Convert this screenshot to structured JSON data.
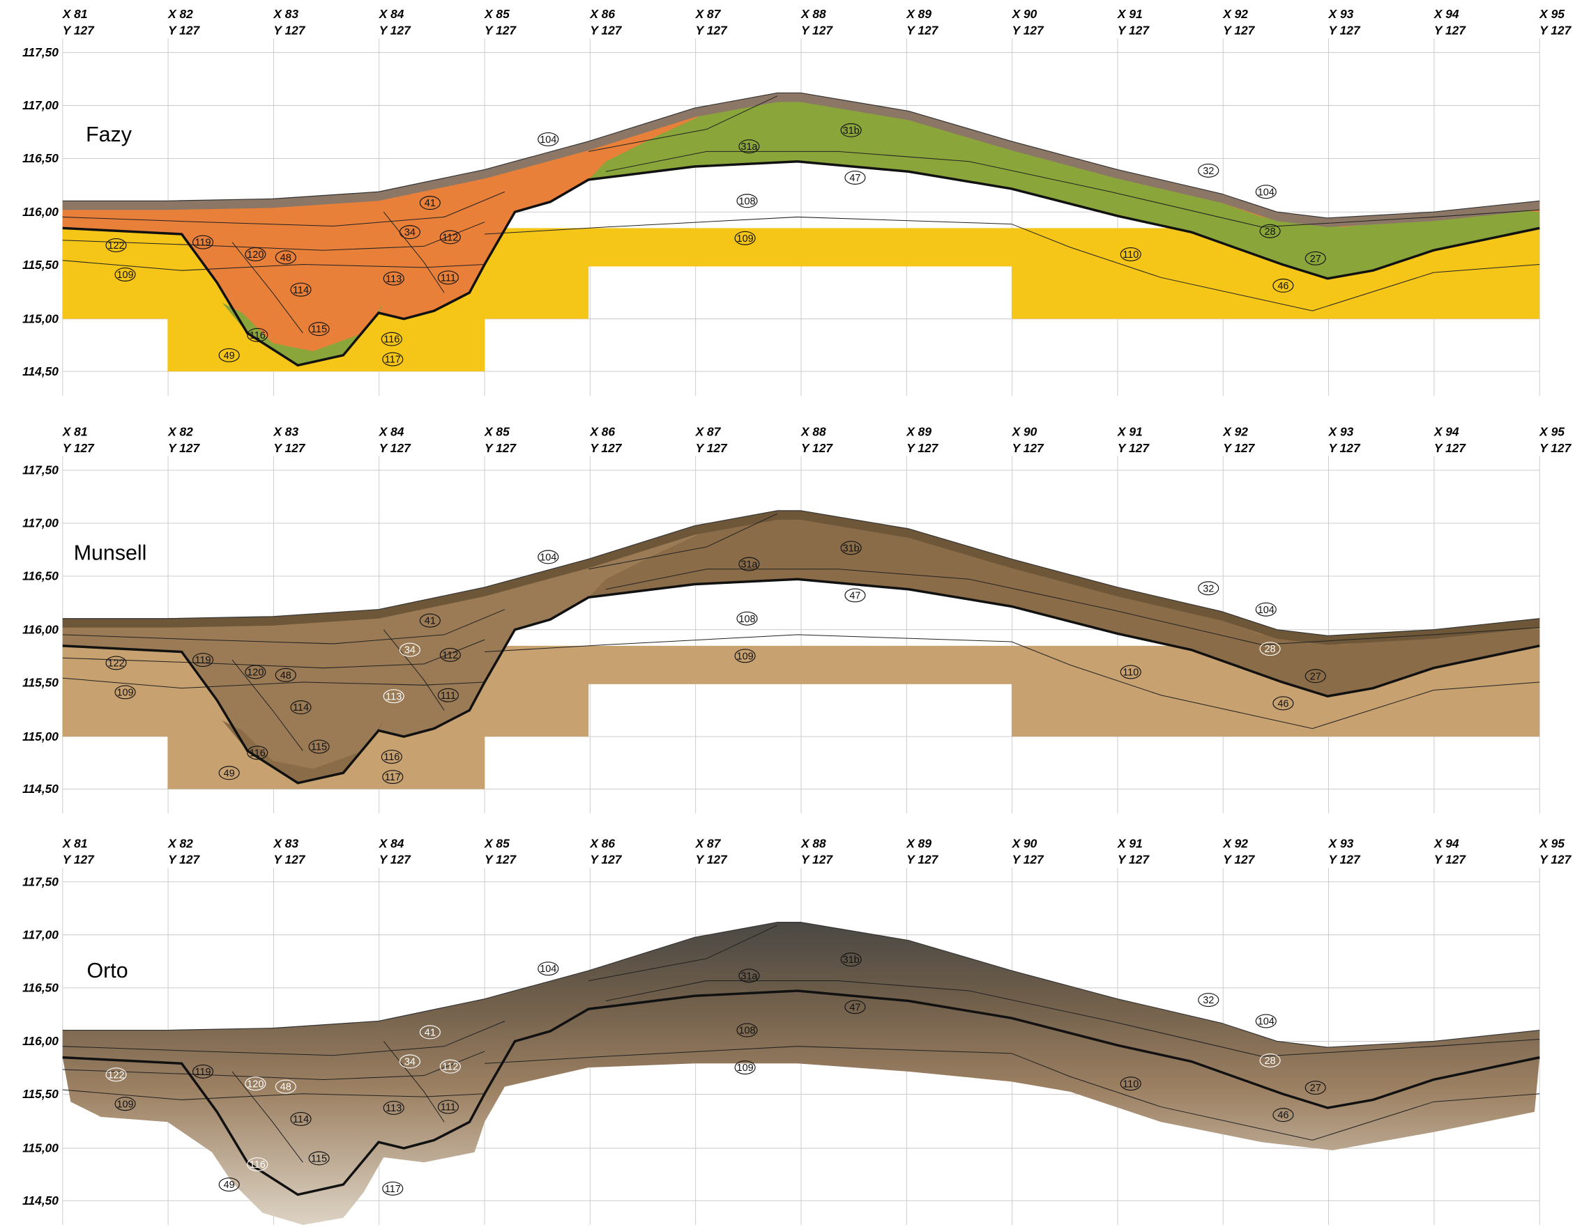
{
  "columns": [
    {
      "x": "X 81",
      "y": "Y 127"
    },
    {
      "x": "X 82",
      "y": "Y 127"
    },
    {
      "x": "X 83",
      "y": "Y 127"
    },
    {
      "x": "X 84",
      "y": "Y 127"
    },
    {
      "x": "X 85",
      "y": "Y 127"
    },
    {
      "x": "X 86",
      "y": "Y 127"
    },
    {
      "x": "X 87",
      "y": "Y 127"
    },
    {
      "x": "X 88",
      "y": "Y 127"
    },
    {
      "x": "X 89",
      "y": "Y 127"
    },
    {
      "x": "X 90",
      "y": "Y 127"
    },
    {
      "x": "X 91",
      "y": "Y 127"
    },
    {
      "x": "X 92",
      "y": "Y 127"
    },
    {
      "x": "X 93",
      "y": "Y 127"
    },
    {
      "x": "X 94",
      "y": "Y 127"
    },
    {
      "x": "X 95",
      "y": "Y 127"
    }
  ],
  "levels": [
    "117,50",
    "117,00",
    "116,50",
    "116,00",
    "115,50",
    "115,00",
    "114,50"
  ],
  "panels": [
    {
      "title": "Fazy"
    },
    {
      "title": "Munsell"
    },
    {
      "title": "Orto"
    }
  ],
  "layer_labels": [
    "122",
    "119",
    "120",
    "48",
    "41",
    "34",
    "112",
    "113",
    "111",
    "114",
    "115",
    "116",
    "116",
    "117",
    "49",
    "104",
    "31a",
    "31b",
    "47",
    "108",
    "109",
    "109",
    "110",
    "32",
    "104",
    "28",
    "27",
    "46"
  ]
}
